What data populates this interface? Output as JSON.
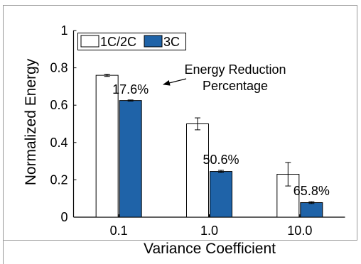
{
  "chart_data": {
    "type": "bar",
    "xlabel": "Variance Coefficient",
    "ylabel": "Normalized Energy",
    "ylim": [
      0,
      1
    ],
    "yticks": [
      "0",
      "0.2",
      "0.4",
      "0.6",
      "0.8",
      "1"
    ],
    "categories": [
      "0.1",
      "1.0",
      "10.0"
    ],
    "series": [
      {
        "name": "1C/2C",
        "values": [
          0.76,
          0.5,
          0.23
        ],
        "err": [
          0.006,
          0.032,
          0.063
        ],
        "color": "#ffffff"
      },
      {
        "name": "3C",
        "values": [
          0.625,
          0.245,
          0.078
        ],
        "err": [
          0.003,
          0.006,
          0.005
        ],
        "color": "#1f63a8"
      }
    ],
    "reduction_labels": [
      "17.6%",
      "50.6%",
      "65.8%"
    ],
    "annotation": {
      "line1": "Energy Reduction",
      "line2": "Percentage"
    },
    "legend_position": "top-left",
    "grid": false
  }
}
